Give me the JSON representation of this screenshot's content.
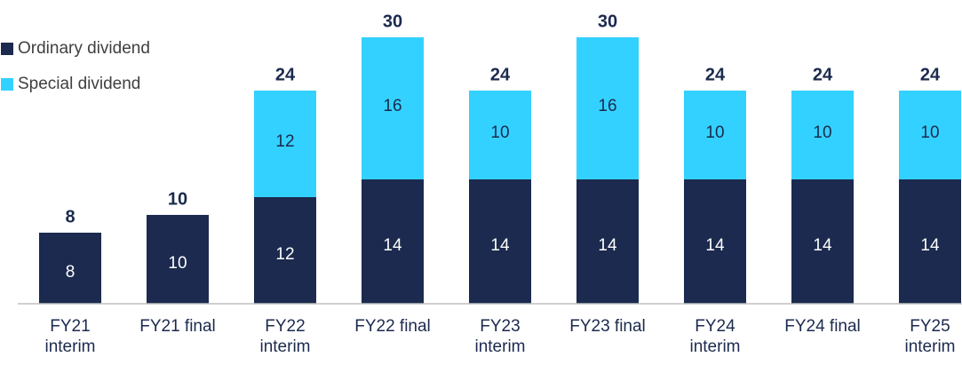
{
  "chart_data": {
    "type": "stacked_bar",
    "categories": [
      "FY21\ninterim",
      "FY21 final",
      "FY22\ninterim",
      "FY22 final",
      "FY23\ninterim",
      "FY23 final",
      "FY24\ninterim",
      "FY24 final",
      "FY25\ninterim"
    ],
    "series": [
      {
        "name": "Ordinary dividend",
        "color": "#1b2a4e",
        "values": [
          8,
          10,
          12,
          14,
          14,
          14,
          14,
          14,
          14
        ]
      },
      {
        "name": "Special dividend",
        "color": "#33d1ff",
        "values": [
          null,
          null,
          12,
          16,
          10,
          16,
          10,
          10,
          10
        ]
      }
    ],
    "totals": [
      8,
      10,
      24,
      30,
      24,
      30,
      24,
      24,
      24
    ],
    "ylim": [
      0,
      30
    ]
  }
}
